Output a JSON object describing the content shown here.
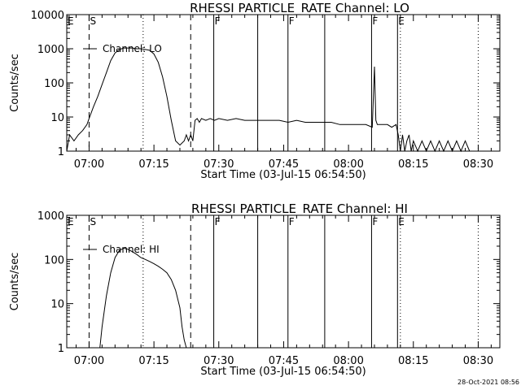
{
  "footer": "28-Oct-2021 08:56",
  "chart_data": [
    {
      "type": "line",
      "title": "RHESSI PARTICLE_RATE Channel: LO",
      "xlabel": "Start Time (03-Jul-15 06:54:50)",
      "ylabel": "Counts/sec",
      "yscale": "log",
      "xlim": [
        "06:54:50",
        "08:35:00"
      ],
      "ylim": [
        1,
        10000
      ],
      "x_ticks": [
        "07:00",
        "07:15",
        "07:30",
        "07:45",
        "08:00",
        "08:15",
        "08:30"
      ],
      "y_ticks": [
        "1",
        "10",
        "100",
        "1000",
        "10000"
      ],
      "legend": "Channel: LO",
      "markers": {
        "dotted": [
          "07:12:30",
          "08:12:00",
          "08:30:00"
        ],
        "dashed": [
          "07:00:00",
          "07:23:30"
        ],
        "solid": [
          "07:28:50",
          "07:39:00",
          "07:46:00",
          "07:54:30",
          "08:05:20",
          "08:11:20"
        ],
        "letters": [
          {
            "time": "06:54:50",
            "label": "E"
          },
          {
            "time": "07:00:00",
            "label": "S"
          },
          {
            "time": "07:28:50",
            "label": "F"
          },
          {
            "time": "07:46:00",
            "label": "F"
          },
          {
            "time": "08:05:20",
            "label": "F"
          },
          {
            "time": "08:11:20",
            "label": "E"
          }
        ]
      },
      "series": [
        {
          "x": [
            "06:54:50",
            "06:55:30",
            "06:56:30",
            "06:57:30",
            "06:58:30",
            "06:59:30",
            "07:00:00",
            "07:01:00",
            "07:02:00",
            "07:03:00",
            "07:04:00",
            "07:05:00",
            "07:06:00",
            "07:07:00",
            "07:08:00",
            "07:09:00",
            "07:10:00",
            "07:11:00",
            "07:12:00",
            "07:13:00",
            "07:14:00",
            "07:15:00",
            "07:16:00",
            "07:17:00",
            "07:18:00",
            "07:19:00",
            "07:20:00",
            "07:21:00",
            "07:22:00",
            "07:22:30",
            "07:23:00",
            "07:23:30",
            "07:24:00",
            "07:24:30",
            "07:25:00",
            "07:25:30",
            "07:26:00",
            "07:27:00",
            "07:28:00",
            "07:29:00",
            "07:30:00",
            "07:32:00",
            "07:34:00",
            "07:36:00",
            "07:38:00",
            "07:40:00",
            "07:42:00",
            "07:44:00",
            "07:46:00",
            "07:48:00",
            "07:50:00",
            "07:52:00",
            "07:54:00",
            "07:56:00",
            "07:58:00",
            "08:00:00",
            "08:02:00",
            "08:04:00",
            "08:05:30",
            "08:06:00",
            "08:06:20",
            "08:06:40",
            "08:07:00",
            "08:08:00",
            "08:09:00",
            "08:10:00",
            "08:11:00",
            "08:11:30",
            "08:12:00",
            "08:12:30",
            "08:13:00",
            "08:13:30",
            "08:14:00",
            "08:14:30",
            "08:15:00",
            "08:16:00",
            "08:17:00",
            "08:18:00",
            "08:19:00",
            "08:20:00",
            "08:21:00",
            "08:22:00",
            "08:23:00",
            "08:24:00",
            "08:25:00",
            "08:26:00",
            "08:27:00",
            "08:28:00"
          ],
          "y": [
            1,
            3,
            2,
            3,
            4,
            6,
            9,
            20,
            40,
            90,
            200,
            450,
            750,
            950,
            1050,
            1050,
            1050,
            1000,
            1000,
            950,
            900,
            700,
            400,
            150,
            40,
            8,
            2,
            1.5,
            2,
            3,
            2,
            3,
            2,
            8,
            9,
            7,
            9,
            8,
            9,
            8,
            9,
            8,
            9,
            8,
            8,
            8,
            8,
            8,
            7,
            8,
            7,
            7,
            7,
            7,
            6,
            6,
            6,
            6,
            5,
            300,
            8,
            6,
            6,
            6,
            6,
            5,
            6,
            3,
            1,
            3,
            1,
            2,
            3,
            1,
            2,
            1,
            2,
            1,
            2,
            1,
            2,
            1,
            2,
            1,
            2,
            1,
            2,
            1
          ]
        }
      ]
    },
    {
      "type": "line",
      "title": "RHESSI PARTICLE_RATE Channel: HI",
      "xlabel": "Start Time (03-Jul-15 06:54:50)",
      "ylabel": "Counts/sec",
      "yscale": "log",
      "xlim": [
        "06:54:50",
        "08:35:00"
      ],
      "ylim": [
        1,
        1000
      ],
      "x_ticks": [
        "07:00",
        "07:15",
        "07:30",
        "07:45",
        "08:00",
        "08:15",
        "08:30"
      ],
      "y_ticks": [
        "1",
        "10",
        "100",
        "1000"
      ],
      "legend": "Channel: HI",
      "markers": {
        "dotted": [
          "07:12:30",
          "08:12:00",
          "08:30:00"
        ],
        "dashed": [
          "07:00:00",
          "07:23:30"
        ],
        "solid": [
          "07:28:50",
          "07:39:00",
          "07:46:00",
          "07:54:30",
          "08:05:20",
          "08:11:20"
        ],
        "letters": [
          {
            "time": "06:54:50",
            "label": "E"
          },
          {
            "time": "07:00:00",
            "label": "S"
          },
          {
            "time": "07:28:50",
            "label": "F"
          },
          {
            "time": "07:46:00",
            "label": "F"
          },
          {
            "time": "08:05:20",
            "label": "F"
          },
          {
            "time": "08:11:20",
            "label": "E"
          }
        ]
      },
      "series": [
        {
          "x": [
            "07:02:30",
            "07:03:00",
            "07:04:00",
            "07:05:00",
            "07:06:00",
            "07:07:00",
            "07:08:00",
            "07:09:00",
            "07:10:00",
            "07:11:00",
            "07:12:00",
            "07:13:00",
            "07:14:00",
            "07:15:00",
            "07:16:00",
            "07:17:00",
            "07:18:00",
            "07:19:00",
            "07:20:00",
            "07:21:00",
            "07:21:30",
            "07:22:00",
            "07:22:30"
          ],
          "y": [
            1,
            3,
            15,
            50,
            110,
            160,
            180,
            170,
            150,
            130,
            110,
            100,
            90,
            80,
            70,
            60,
            50,
            35,
            20,
            8,
            3,
            1.5,
            1
          ]
        }
      ]
    }
  ]
}
